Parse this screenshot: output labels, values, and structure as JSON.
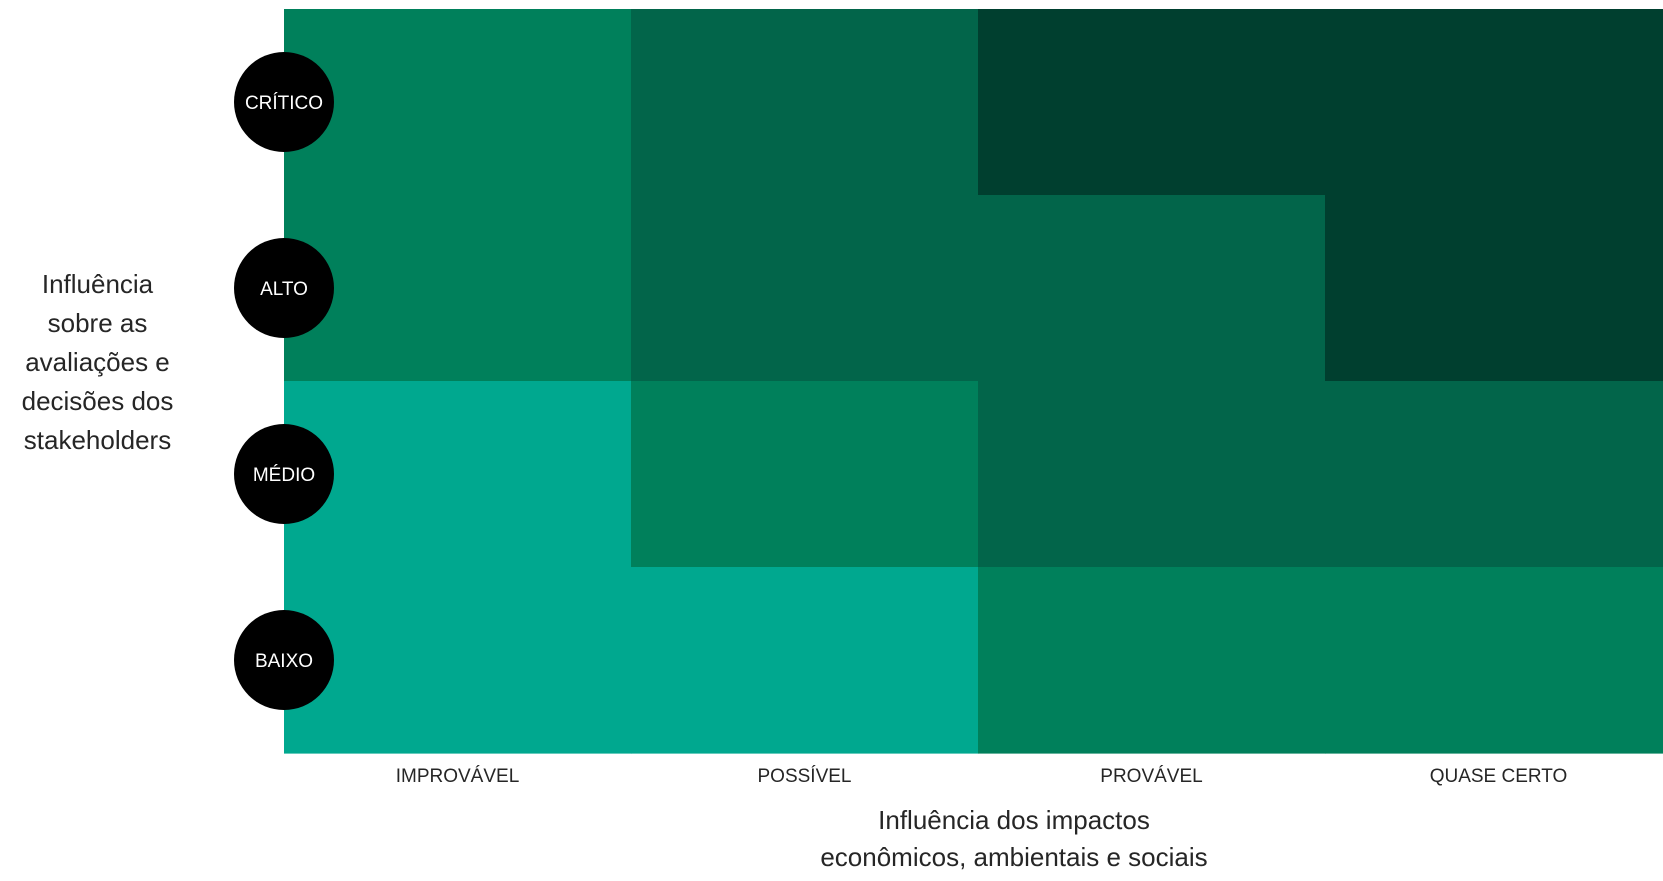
{
  "chart_data": {
    "type": "heatmap",
    "x_categories": [
      "IMPROVÁVEL",
      "POSSÍVEL",
      "PROVÁVEL",
      "QUASE CERTO"
    ],
    "y_categories": [
      "CRÍTICO",
      "ALTO",
      "MÉDIO",
      "BAIXO"
    ],
    "values": [
      [
        3,
        4,
        5,
        5
      ],
      [
        3,
        4,
        4,
        5
      ],
      [
        2,
        3,
        4,
        4
      ],
      [
        2,
        2,
        3,
        3
      ]
    ],
    "colors": {
      "2": "#00A88F",
      "3": "#00805B",
      "4": "#02654A",
      "5": "#003F2F"
    },
    "ylabel_lines": [
      "Influência",
      "sobre as",
      "avaliações e",
      "decisões dos",
      "stakeholders"
    ],
    "xlabel_lines": [
      "Influência dos impactos",
      "econômicos, ambientais e sociais"
    ]
  }
}
